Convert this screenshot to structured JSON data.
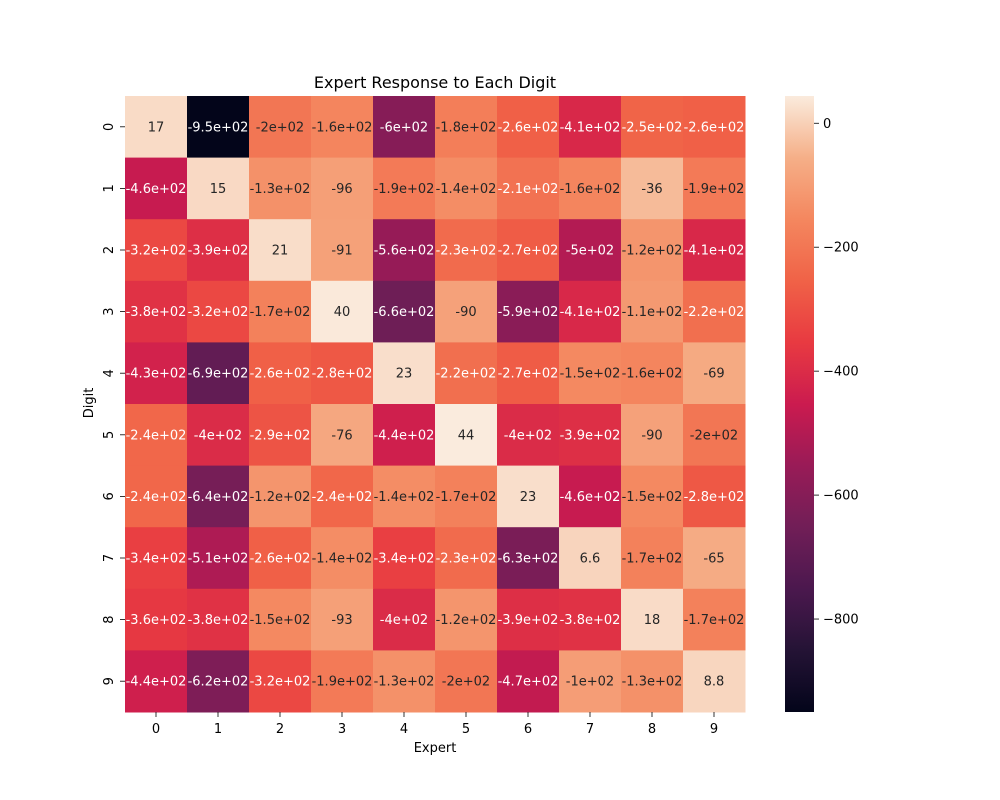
{
  "chart_data": {
    "type": "heatmap",
    "title": "Expert Response to Each Digit",
    "xlabel": "Expert",
    "ylabel": "Digit",
    "x_categories": [
      "0",
      "1",
      "2",
      "3",
      "4",
      "5",
      "6",
      "7",
      "8",
      "9"
    ],
    "y_categories": [
      "0",
      "1",
      "2",
      "3",
      "4",
      "5",
      "6",
      "7",
      "8",
      "9"
    ],
    "values": [
      [
        17,
        -950,
        -200,
        -160,
        -600,
        -180,
        -260,
        -410,
        -250,
        -260
      ],
      [
        -460,
        15,
        -130,
        -96,
        -190,
        -140,
        -210,
        -160,
        -36,
        -190
      ],
      [
        -320,
        -390,
        21,
        -91,
        -560,
        -230,
        -270,
        -500,
        -120,
        -410
      ],
      [
        -380,
        -320,
        -170,
        40,
        -660,
        -90,
        -590,
        -410,
        -110,
        -220
      ],
      [
        -430,
        -690,
        -260,
        -280,
        23,
        -220,
        -270,
        -150,
        -160,
        -69
      ],
      [
        -240,
        -400,
        -290,
        -76,
        -440,
        44,
        -400,
        -390,
        -90,
        -200
      ],
      [
        -240,
        -640,
        -120,
        -240,
        -140,
        -170,
        23,
        -460,
        -150,
        -280
      ],
      [
        -340,
        -510,
        -260,
        -140,
        -340,
        -230,
        -630,
        6.6,
        -170,
        -65
      ],
      [
        -360,
        -380,
        -150,
        -93,
        -400,
        -120,
        -390,
        -380,
        18,
        -170
      ],
      [
        -440,
        -620,
        -320,
        -190,
        -130,
        -200,
        -470,
        -100,
        -130,
        8.8
      ]
    ],
    "annotations": [
      [
        "17",
        "-9.5e+02",
        "-2e+02",
        "-1.6e+02",
        "-6e+02",
        "-1.8e+02",
        "-2.6e+02",
        "-4.1e+02",
        "-2.5e+02",
        "-2.6e+02"
      ],
      [
        "-4.6e+02",
        "15",
        "-1.3e+02",
        "-96",
        "-1.9e+02",
        "-1.4e+02",
        "-2.1e+02",
        "-1.6e+02",
        "-36",
        "-1.9e+02"
      ],
      [
        "-3.2e+02",
        "-3.9e+02",
        "21",
        "-91",
        "-5.6e+02",
        "-2.3e+02",
        "-2.7e+02",
        "-5e+02",
        "-1.2e+02",
        "-4.1e+02"
      ],
      [
        "-3.8e+02",
        "-3.2e+02",
        "-1.7e+02",
        "40",
        "-6.6e+02",
        "-90",
        "-5.9e+02",
        "-4.1e+02",
        "-1.1e+02",
        "-2.2e+02"
      ],
      [
        "-4.3e+02",
        "-6.9e+02",
        "-2.6e+02",
        "-2.8e+02",
        "23",
        "-2.2e+02",
        "-2.7e+02",
        "-1.5e+02",
        "-1.6e+02",
        "-69"
      ],
      [
        "-2.4e+02",
        "-4e+02",
        "-2.9e+02",
        "-76",
        "-4.4e+02",
        "44",
        "-4e+02",
        "-3.9e+02",
        "-90",
        "-2e+02"
      ],
      [
        "-2.4e+02",
        "-6.4e+02",
        "-1.2e+02",
        "-2.4e+02",
        "-1.4e+02",
        "-1.7e+02",
        "23",
        "-4.6e+02",
        "-1.5e+02",
        "-2.8e+02"
      ],
      [
        "-3.4e+02",
        "-5.1e+02",
        "-2.6e+02",
        "-1.4e+02",
        "-3.4e+02",
        "-2.3e+02",
        "-6.3e+02",
        "6.6",
        "-1.7e+02",
        "-65"
      ],
      [
        "-3.6e+02",
        "-3.8e+02",
        "-1.5e+02",
        "-93",
        "-4e+02",
        "-1.2e+02",
        "-3.9e+02",
        "-3.8e+02",
        "18",
        "-1.7e+02"
      ],
      [
        "-4.4e+02",
        "-6.2e+02",
        "-3.2e+02",
        "-1.9e+02",
        "-1.3e+02",
        "-2e+02",
        "-4.7e+02",
        "-1e+02",
        "-1.3e+02",
        "8.8"
      ]
    ],
    "colormap": "rocket",
    "vmin": -950,
    "vmax": 44,
    "colorbar_ticks": [
      0,
      -200,
      -400,
      -600,
      -800
    ],
    "colorbar_tick_labels": [
      "0",
      "−200",
      "−400",
      "−600",
      "−800"
    ],
    "grid": false
  }
}
